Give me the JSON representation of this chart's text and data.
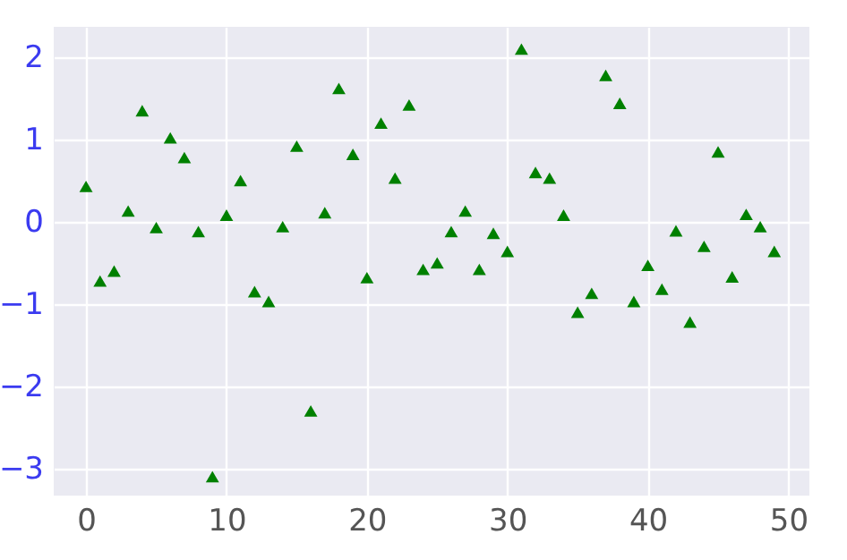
{
  "chart_data": {
    "type": "scatter",
    "x": [
      0,
      1,
      2,
      3,
      4,
      5,
      6,
      7,
      8,
      9,
      10,
      11,
      12,
      13,
      14,
      15,
      16,
      17,
      18,
      19,
      20,
      21,
      22,
      23,
      24,
      25,
      26,
      27,
      28,
      29,
      30,
      31,
      32,
      33,
      34,
      35,
      36,
      37,
      38,
      39,
      40,
      41,
      42,
      43,
      44,
      45,
      46,
      47,
      48,
      49
    ],
    "series": [
      {
        "color": "#008000",
        "values": [
          0.43,
          -0.72,
          -0.6,
          0.13,
          1.35,
          -0.07,
          1.02,
          0.78,
          -0.12,
          -3.1,
          0.08,
          0.5,
          -0.85,
          -0.97,
          -0.06,
          0.92,
          -2.3,
          0.11,
          1.62,
          0.82,
          -0.68,
          1.2,
          0.53,
          1.42,
          -0.58,
          -0.5,
          -0.12,
          0.13,
          -0.58,
          -0.14,
          -0.36,
          2.1,
          0.6,
          0.53,
          0.08,
          -1.1,
          -0.87,
          1.78,
          1.44,
          -0.97,
          -0.53,
          -0.82,
          -0.11,
          -1.22,
          -0.3,
          0.85,
          -0.67,
          0.09,
          -0.06,
          -0.36
        ]
      }
    ],
    "xlim": [
      -2.3,
      51.5
    ],
    "ylim": [
      -3.33,
      2.37
    ],
    "xticks": [
      0,
      10,
      20,
      30,
      40,
      50
    ],
    "yticks": [
      -3,
      -2,
      -1,
      0,
      1,
      2
    ],
    "grid": true,
    "marker": "triangle"
  }
}
